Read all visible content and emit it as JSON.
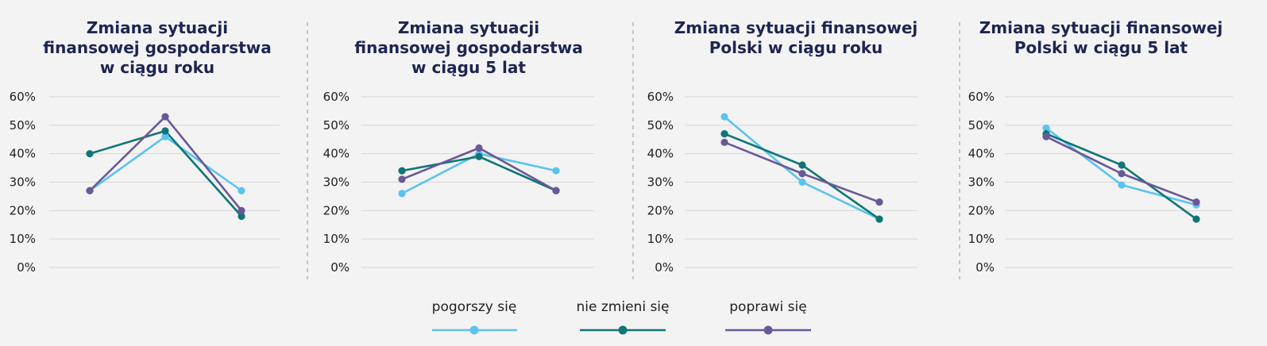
{
  "legend": [
    {
      "label": "pogorszy się",
      "color": "#5bc3ef"
    },
    {
      "label": "nie zmieni się",
      "color": "#0f7675"
    },
    {
      "label": "poprawi się",
      "color": "#6a5897"
    }
  ],
  "chart_data": [
    {
      "type": "line",
      "title": [
        "Zmiana sytuacji",
        "finansowej gospodarstwa",
        "w ciągu roku"
      ],
      "ylim": [
        0,
        60
      ],
      "yticks": [
        "60%",
        "50%",
        "40%",
        "30%",
        "20%",
        "10%",
        "0%"
      ],
      "grid": true,
      "series": [
        {
          "name": "pogorszy się",
          "values": [
            27,
            46,
            27
          ]
        },
        {
          "name": "nie zmieni się",
          "values": [
            40,
            48,
            18
          ]
        },
        {
          "name": "poprawi się",
          "values": [
            27,
            53,
            20
          ]
        }
      ]
    },
    {
      "type": "line",
      "title": [
        "Zmiana sytuacji",
        "finansowej gospodarstwa",
        "w ciągu 5 lat"
      ],
      "ylim": [
        0,
        60
      ],
      "yticks": [
        "60%",
        "50%",
        "40%",
        "30%",
        "20%",
        "10%",
        "0%"
      ],
      "grid": true,
      "series": [
        {
          "name": "pogorszy się",
          "values": [
            26,
            40,
            34
          ]
        },
        {
          "name": "nie zmieni się",
          "values": [
            34,
            39,
            27
          ]
        },
        {
          "name": "poprawi się",
          "values": [
            31,
            42,
            27
          ]
        }
      ]
    },
    {
      "type": "line",
      "title": [
        "Zmiana sytuacji finansowej",
        "Polski w ciągu roku"
      ],
      "ylim": [
        0,
        60
      ],
      "yticks": [
        "60%",
        "50%",
        "40%",
        "30%",
        "20%",
        "10%",
        "0%"
      ],
      "grid": true,
      "series": [
        {
          "name": "pogorszy się",
          "values": [
            53,
            30,
            17
          ]
        },
        {
          "name": "nie zmieni się",
          "values": [
            47,
            36,
            17
          ]
        },
        {
          "name": "poprawi się",
          "values": [
            44,
            33,
            23
          ]
        }
      ]
    },
    {
      "type": "line",
      "title": [
        "Zmiana sytuacji finansowej",
        "Polski w ciągu 5 lat"
      ],
      "ylim": [
        0,
        60
      ],
      "yticks": [
        "60%",
        "50%",
        "40%",
        "30%",
        "20%",
        "10%",
        "0%"
      ],
      "grid": true,
      "series": [
        {
          "name": "pogorszy się",
          "values": [
            49,
            29,
            22
          ]
        },
        {
          "name": "nie zmieni się",
          "values": [
            47,
            36,
            17
          ]
        },
        {
          "name": "poprawi się",
          "values": [
            46,
            33,
            23
          ]
        }
      ]
    }
  ]
}
